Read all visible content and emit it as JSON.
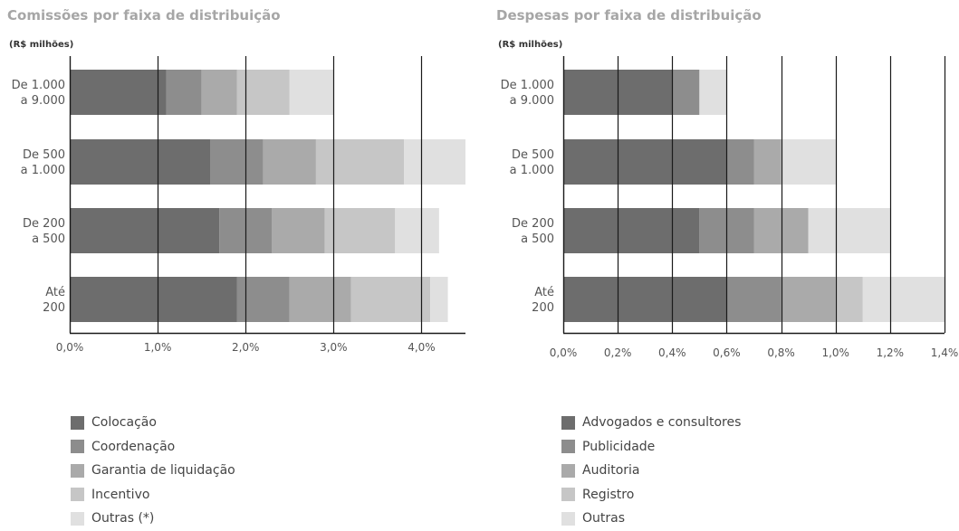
{
  "chart_data": [
    {
      "type": "bar",
      "orientation": "horizontal",
      "stacked": true,
      "title": "Comissões por faixa de distribuição",
      "unit_label": "(R$ milhões)",
      "categories": [
        "De 1.000\na 9.000",
        "De 500\na 1.000",
        "De 200\na 500",
        "Até\n200"
      ],
      "series": [
        {
          "name": "Colocação",
          "color": "#6d6d6d",
          "values": [
            1.1,
            1.6,
            1.7,
            1.9
          ]
        },
        {
          "name": "Coordenação",
          "color": "#8d8d8d",
          "values": [
            0.4,
            0.6,
            0.6,
            0.6
          ]
        },
        {
          "name": "Garantia de liquidação",
          "color": "#aaaaaa",
          "values": [
            0.4,
            0.6,
            0.6,
            0.7
          ]
        },
        {
          "name": "Incentivo",
          "color": "#c6c6c6",
          "values": [
            0.6,
            1.0,
            0.8,
            0.9
          ]
        },
        {
          "name": "Outras (*)",
          "color": "#e0e0e0",
          "values": [
            0.5,
            0.7,
            0.5,
            0.2
          ]
        }
      ],
      "xlim": [
        0,
        4.5
      ],
      "xticks": [
        0,
        1,
        2,
        3,
        4
      ],
      "xtick_labels": [
        "0,0%",
        "1,0%",
        "2,0%",
        "3,0%",
        "4,0%"
      ],
      "grid": "vertical",
      "legend_position": "bottom"
    },
    {
      "type": "bar",
      "orientation": "horizontal",
      "stacked": true,
      "title": "Despesas por faixa de distribuição",
      "unit_label": "(R$ milhões)",
      "categories": [
        "De 1.000\na 9.000",
        "De 500\na 1.000",
        "De 200\na 500",
        "Até\n200"
      ],
      "series": [
        {
          "name": "Advogados e consultores",
          "color": "#6d6d6d",
          "values": [
            0.4,
            0.6,
            0.5,
            0.6
          ]
        },
        {
          "name": "Publicidade",
          "color": "#8d8d8d",
          "values": [
            0.1,
            0.1,
            0.2,
            0.2
          ]
        },
        {
          "name": "Auditoria",
          "color": "#aaaaaa",
          "values": [
            0.0,
            0.1,
            0.2,
            0.2
          ]
        },
        {
          "name": "Registro",
          "color": "#c6c6c6",
          "values": [
            0.0,
            0.0,
            0.0,
            0.1
          ]
        },
        {
          "name": "Outras",
          "color": "#e0e0e0",
          "values": [
            0.1,
            0.2,
            0.3,
            0.3
          ]
        }
      ],
      "xlim": [
        0,
        1.4
      ],
      "xticks": [
        0,
        0.2,
        0.4,
        0.6,
        0.8,
        1.0,
        1.2,
        1.4
      ],
      "xtick_labels": [
        "0,0%",
        "0,2%",
        "0,4%",
        "0,6%",
        "0,8%",
        "1,0%",
        "1,2%",
        "1,4%"
      ],
      "grid": "vertical",
      "legend_position": "bottom"
    }
  ]
}
